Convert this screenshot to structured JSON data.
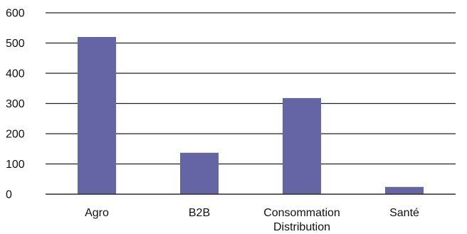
{
  "chart_data": {
    "type": "bar",
    "categories": [
      [
        "Agro"
      ],
      [
        "B2B"
      ],
      [
        "Consommation",
        "Distribution"
      ],
      [
        "Santé"
      ]
    ],
    "values": [
      520,
      137,
      318,
      24
    ],
    "ylim": [
      0,
      600
    ],
    "yticks": [
      0,
      100,
      200,
      300,
      400,
      500,
      600
    ],
    "grid": true,
    "legend": "none",
    "bar_color": "#6564A5",
    "grid_color": "#222222"
  }
}
